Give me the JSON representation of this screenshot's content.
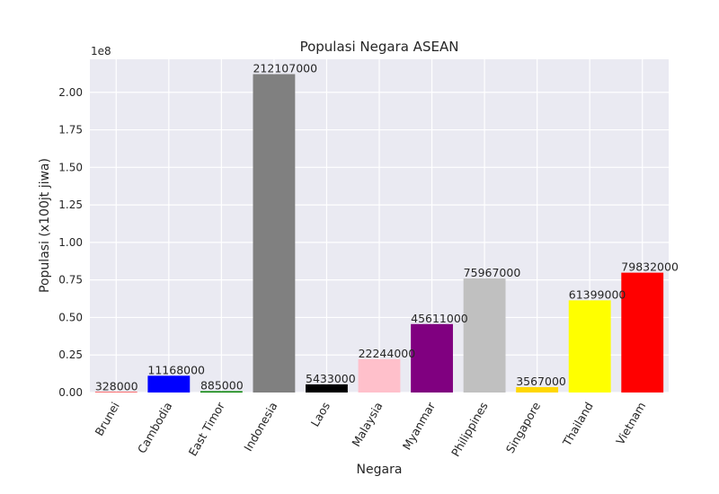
{
  "chart_data": {
    "type": "bar",
    "title": "Populasi Negara ASEAN",
    "xlabel": "Negara",
    "ylabel": "Populasi (x100jt jiwa)",
    "y_offset_label": "1e8",
    "y_scale": 100000000,
    "ylim": [
      0,
      222000000
    ],
    "yticks": [
      0,
      25000000,
      50000000,
      75000000,
      100000000,
      125000000,
      150000000,
      175000000,
      200000000
    ],
    "ytick_labels": [
      "0.00",
      "0.25",
      "0.50",
      "0.75",
      "1.00",
      "1.25",
      "1.50",
      "1.75",
      "2.00"
    ],
    "grid": true,
    "categories": [
      "Brunei",
      "Cambodia",
      "East Timor",
      "Indonesia",
      "Laos",
      "Malaysia",
      "Myanmar",
      "Philippines",
      "Singapore",
      "Thailand",
      "Vietnam"
    ],
    "values": [
      328000,
      11168000,
      885000,
      212107000,
      5433000,
      22244000,
      45611000,
      75967000,
      3567000,
      61399000,
      79832000
    ],
    "data_labels": [
      "328000",
      "11168000",
      "885000",
      "212107000",
      "5433000",
      "22244000",
      "45611000",
      "75967000",
      "3567000",
      "61399000",
      "79832000"
    ],
    "colors": [
      "#ff0000",
      "#0000ff",
      "#008000",
      "#808080",
      "#000000",
      "#ffc0cb",
      "#800080",
      "#c0c0c0",
      "#ffd700",
      "#ffff00",
      "#ff0000"
    ],
    "plot_background": "#eaeaf2",
    "grid_color": "#ffffff"
  }
}
